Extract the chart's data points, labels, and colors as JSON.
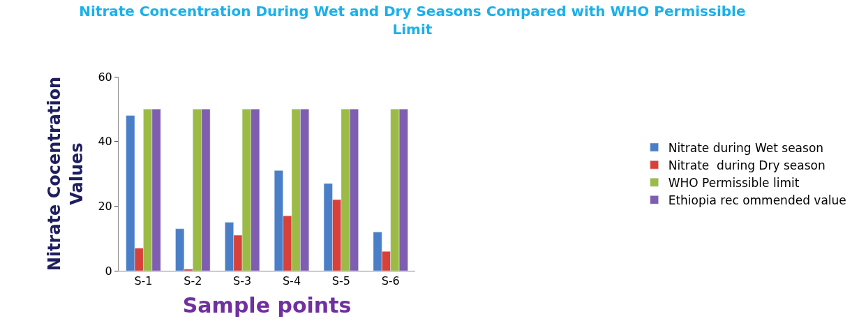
{
  "chart_data": {
    "type": "bar",
    "title": "Nitrate Concentration During Wet and Dry Seasons Compared with WHO Permissible Limit",
    "xlabel": "Sample points",
    "ylabel": "Nitrate Cocentration Values",
    "categories": [
      "S-1",
      "S-2",
      "S-3",
      "S-4",
      "S-5",
      "S-6"
    ],
    "series": [
      {
        "name": "Nitrate during Wet season",
        "color": "#4a7fc8",
        "values": [
          48,
          13,
          15,
          31,
          27,
          12
        ]
      },
      {
        "name": "Nitrate  during Dry season",
        "color": "#d8403a",
        "values": [
          7,
          0.5,
          11,
          17,
          22,
          6
        ]
      },
      {
        "name": "WHO Permissible limit",
        "color": "#9bbb45",
        "values": [
          50,
          50,
          50,
          50,
          50,
          50
        ]
      },
      {
        "name": "Ethiopia rec ommended value",
        "color": "#7f5db0",
        "values": [
          50,
          50,
          50,
          50,
          50,
          50
        ]
      }
    ],
    "ylim": [
      0,
      60
    ],
    "yticks": [
      0,
      20,
      40,
      60
    ],
    "legend": "right"
  }
}
